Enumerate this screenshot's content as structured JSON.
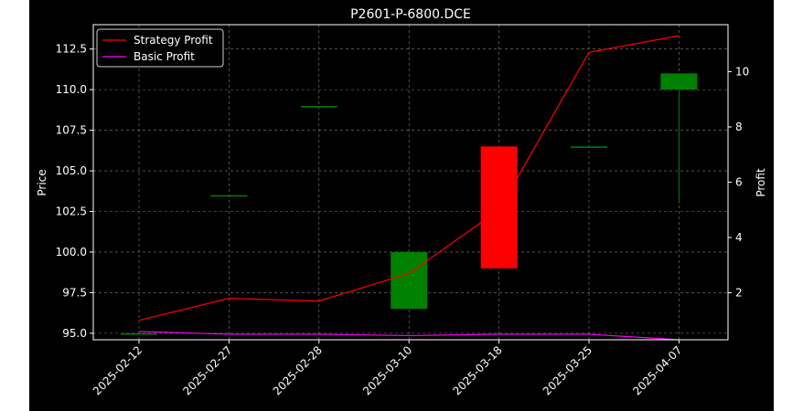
{
  "chart_data": {
    "type": "candlestick",
    "title": "P2601-P-6800.DCE",
    "ylabel_left": "Price",
    "ylabel_right": "Profit",
    "categories": [
      "2025-02-12",
      "2025-02-27",
      "2025-02-28",
      "2025-03-10",
      "2025-03-18",
      "2025-03-25",
      "2025-04-07"
    ],
    "candles": [
      {
        "open": 95.0,
        "high": 95.0,
        "low": 95.0,
        "close": 95.0
      },
      {
        "open": 103.5,
        "high": 103.5,
        "low": 103.5,
        "close": 103.5
      },
      {
        "open": 109.0,
        "high": 109.0,
        "low": 109.0,
        "close": 109.0
      },
      {
        "open": 96.5,
        "high": 100.0,
        "low": 96.5,
        "close": 100.0
      },
      {
        "open": 106.5,
        "high": 106.5,
        "low": 99.0,
        "close": 99.0
      },
      {
        "open": 106.5,
        "high": 106.5,
        "low": 106.5,
        "close": 106.5
      },
      {
        "open": 110.0,
        "high": 111.0,
        "low": 103.0,
        "close": 111.0
      }
    ],
    "series": [
      {
        "name": "Strategy Profit",
        "color": "#ff0000",
        "values": [
          1.0,
          1.8,
          1.7,
          2.7,
          5.0,
          10.7,
          11.3
        ]
      },
      {
        "name": "Basic Profit",
        "color": "#ff00ff",
        "values": [
          0.6,
          0.5,
          0.5,
          0.45,
          0.5,
          0.5,
          0.3
        ]
      }
    ],
    "ylim_left": [
      94.6,
      114.0
    ],
    "ylim_right": [
      0.3,
      11.7
    ],
    "yticks_left": [
      "95.0",
      "97.5",
      "100.0",
      "102.5",
      "105.0",
      "107.5",
      "110.0",
      "112.5"
    ],
    "yticks_right": [
      "2",
      "4",
      "6",
      "8",
      "10"
    ],
    "colors": {
      "up": "#008000",
      "down": "#ff0000",
      "background": "#000000",
      "grid": "#808080",
      "text": "#ffffff"
    },
    "grid": true,
    "legend_position": "top-left"
  }
}
